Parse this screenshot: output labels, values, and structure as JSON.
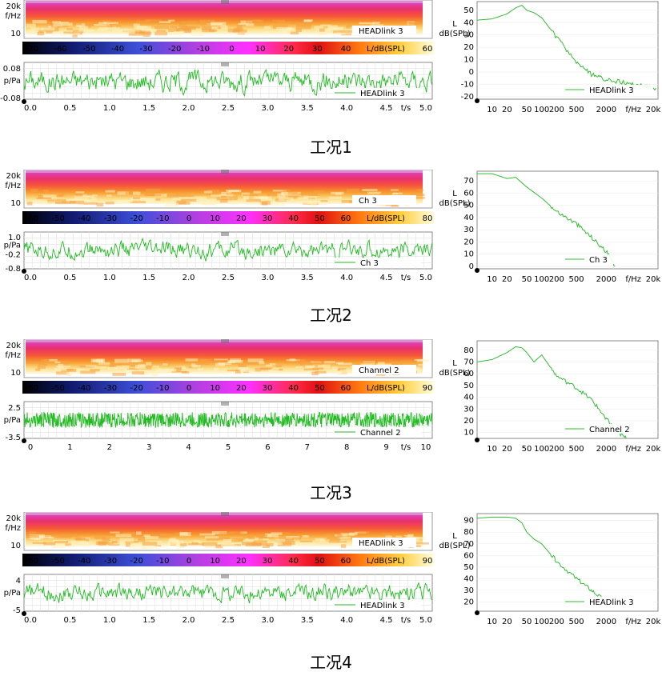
{
  "chart_data": [
    {
      "caption": "工况1",
      "spectrogram": {
        "type": "heatmap",
        "ylabel": "f/Hz",
        "yticks": [
          "20k",
          "10"
        ],
        "legend": "HEADlink 3"
      },
      "colorbar": {
        "ticks": [
          "-70",
          "-60",
          "-50",
          "-40",
          "-30",
          "-20",
          "-10",
          "0",
          "10",
          "20",
          "30",
          "40"
        ],
        "label": "L/dB(SPL)",
        "max": "60"
      },
      "waveform": {
        "type": "line",
        "ylabel": "p/Pa",
        "yticks": [
          "0.08",
          "-0.08"
        ],
        "ylim": [
          -0.08,
          0.08
        ],
        "xticks": [
          "0.0",
          "0.5",
          "1.0",
          "1.5",
          "2.0",
          "2.5",
          "3.0",
          "3.5",
          "4.0",
          "4.5"
        ],
        "xlabel": "t/s",
        "xmax": "5.0",
        "legend": "HEADlink 3",
        "amp": 0.055
      },
      "spectrum": {
        "type": "line",
        "ylabel": "dB(SPL)",
        "ylabel_top": "L",
        "yticks": [
          "50",
          "40",
          "30",
          "20",
          "10",
          "0",
          "-10",
          "-20"
        ],
        "ylim": [
          -22,
          57
        ],
        "xticks": [
          "10",
          "20",
          "50",
          "100",
          "200",
          "500",
          "2000"
        ],
        "xlabel": "f/Hz",
        "xmax": "20k",
        "legend": "HEADlink 3",
        "x": [
          5,
          10,
          20,
          30,
          40,
          50,
          70,
          100,
          200,
          500,
          1000,
          2000,
          5000,
          10000,
          20000
        ],
        "y": [
          42,
          43,
          47,
          52,
          54,
          50,
          48,
          44,
          28,
          8,
          -2,
          -6,
          -9,
          -11,
          -13
        ]
      }
    },
    {
      "caption": "工况2",
      "spectrogram": {
        "type": "heatmap",
        "ylabel": "f/Hz",
        "yticks": [
          "20k",
          "10"
        ],
        "legend": "Ch 3"
      },
      "colorbar": {
        "ticks": [
          "-60",
          "-50",
          "-40",
          "-30",
          "-20",
          "-10",
          "0",
          "10",
          "20",
          "30",
          "40",
          "50",
          "60"
        ],
        "label": "L/dB(SPL)",
        "max": "80"
      },
      "waveform": {
        "type": "line",
        "ylabel": "p/Pa",
        "yticks": [
          "1.0",
          "-0.2",
          "-0.8"
        ],
        "ylim": [
          -0.8,
          1.0
        ],
        "xticks": [
          "0.0",
          "0.5",
          "1.0",
          "1.5",
          "2.0",
          "2.5",
          "3.0",
          "3.5",
          "4.0",
          "4.5"
        ],
        "xlabel": "t/s",
        "xmax": "5.0",
        "legend": "Ch 3",
        "amp": 0.5
      },
      "spectrum": {
        "type": "line",
        "ylabel": "dB(SPL)",
        "ylabel_top": "L",
        "yticks": [
          "70",
          "60",
          "50",
          "40",
          "30",
          "20",
          "10",
          "0"
        ],
        "ylim": [
          -2,
          78
        ],
        "xticks": [
          "10",
          "20",
          "50",
          "100",
          "200",
          "500",
          "2000"
        ],
        "xlabel": "f/Hz",
        "xmax": "20k",
        "legend": "Ch 3",
        "x": [
          5,
          10,
          20,
          30,
          50,
          100,
          200,
          500,
          1000,
          2000,
          3000
        ],
        "y": [
          76,
          76,
          72,
          73,
          65,
          56,
          45,
          35,
          24,
          12,
          0
        ]
      }
    },
    {
      "caption": "工况3",
      "spectrogram": {
        "type": "heatmap",
        "ylabel": "f/Hz",
        "yticks": [
          "20k",
          "10"
        ],
        "legend": "Channel 2"
      },
      "colorbar": {
        "ticks": [
          "-60",
          "-50",
          "-40",
          "-30",
          "-20",
          "-10",
          "0",
          "10",
          "20",
          "30",
          "40",
          "50",
          "60"
        ],
        "label": "L/dB(SPL)",
        "max": "90"
      },
      "waveform": {
        "type": "line",
        "ylabel": "p/Pa",
        "yticks": [
          "2.5",
          "-3.5"
        ],
        "ylim": [
          -3.5,
          2.5
        ],
        "xticks": [
          "0",
          "1",
          "2",
          "3",
          "4",
          "5",
          "6",
          "7",
          "8",
          "9"
        ],
        "xlabel": "t/s",
        "xmax": "10",
        "legend": "Channel 2",
        "amp": 1.4
      },
      "spectrum": {
        "type": "line",
        "ylabel": "dB(SPL)",
        "ylabel_top": "L",
        "yticks": [
          "80",
          "70",
          "60",
          "50",
          "40",
          "30",
          "20",
          "10"
        ],
        "ylim": [
          5,
          88
        ],
        "xticks": [
          "10",
          "20",
          "50",
          "100",
          "200",
          "500",
          "2000"
        ],
        "xlabel": "f/Hz",
        "xmax": "20k",
        "legend": "Channel 2",
        "x": [
          5,
          10,
          20,
          30,
          40,
          50,
          70,
          100,
          200,
          500,
          1000,
          2000,
          3000,
          5000
        ],
        "y": [
          70,
          72,
          78,
          83,
          82,
          78,
          70,
          76,
          58,
          48,
          38,
          22,
          12,
          5
        ]
      }
    },
    {
      "caption": "工况4",
      "spectrogram": {
        "type": "heatmap",
        "ylabel": "f/Hz",
        "yticks": [
          "20k",
          "10"
        ],
        "legend": "HEADlink 3"
      },
      "colorbar": {
        "ticks": [
          "-60",
          "-50",
          "-40",
          "-30",
          "-20",
          "-10",
          "0",
          "10",
          "20",
          "30",
          "40",
          "50",
          "60"
        ],
        "label": "L/dB(SPL)",
        "max": "90"
      },
      "waveform": {
        "type": "line",
        "ylabel": "p/Pa",
        "yticks": [
          "4",
          "-5"
        ],
        "ylim": [
          -5,
          4
        ],
        "xticks": [
          "0.0",
          "0.5",
          "1.0",
          "1.5",
          "2.0",
          "2.5",
          "3.0",
          "3.5",
          "4.0",
          "4.5"
        ],
        "xlabel": "t/s",
        "xmax": "5.0",
        "legend": "HEADlink 3",
        "amp": 2.5
      },
      "spectrum": {
        "type": "line",
        "ylabel": "dB(SPL)",
        "ylabel_top": "L",
        "yticks": [
          "90",
          "80",
          "70",
          "60",
          "50",
          "40",
          "30",
          "20"
        ],
        "ylim": [
          12,
          96
        ],
        "xticks": [
          "10",
          "20",
          "50",
          "100",
          "200",
          "500",
          "2000"
        ],
        "xlabel": "f/Hz",
        "xmax": "20k",
        "legend": "HEADlink 3",
        "x": [
          5,
          10,
          20,
          30,
          40,
          50,
          70,
          100,
          200,
          500,
          1000,
          2000
        ],
        "y": [
          92,
          93,
          93,
          92,
          88,
          80,
          74,
          70,
          55,
          40,
          30,
          20
        ]
      }
    }
  ]
}
